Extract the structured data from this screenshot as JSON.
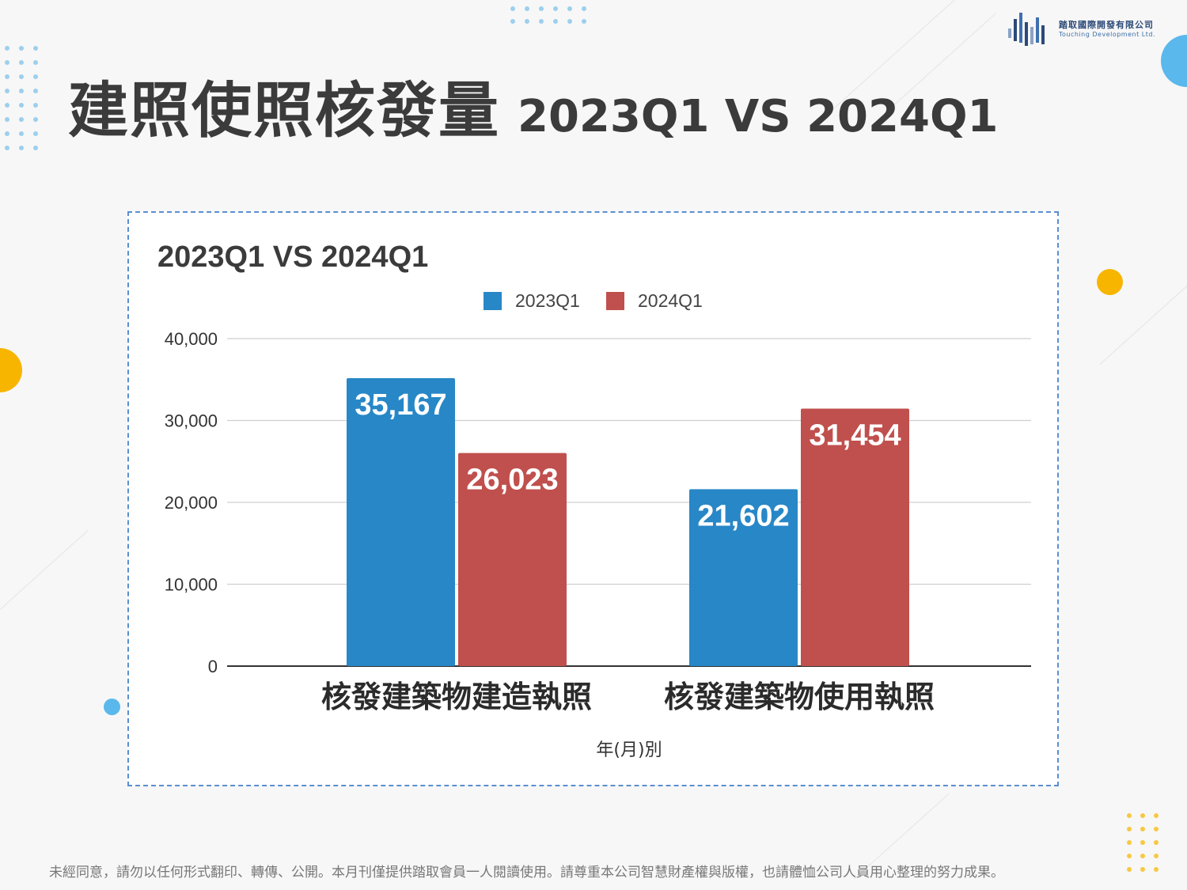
{
  "page": {
    "title_main": "建照使照核發量",
    "title_sub": "2023Q1 VS 2024Q1",
    "logo_name_cn": "踏取國際開發有限公司",
    "logo_name_en": "Touching Development Ltd.",
    "footer_text": "未經同意，請勿以任何形式翻印、轉傳、公開。本月刊僅提供踏取會員一人閱讀使用。請尊重本公司智慧財產權與版權，也請體恤公司人員用心整理的努力成果。"
  },
  "colors": {
    "accent_yellow": "#f7b500",
    "accent_blue": "#5ab8ec",
    "dots_blue": "#9ccfee"
  },
  "chart_data": {
    "type": "bar",
    "title": "2023Q1 VS 2024Q1",
    "xlabel": "年(月)別",
    "ylabel": "",
    "categories": [
      "核發建築物建造執照",
      "核發建築物使用執照"
    ],
    "series": [
      {
        "name": "2023Q1",
        "values": [
          35167,
          21602
        ],
        "color": "#2887c7",
        "labels": [
          "35,167",
          "21,602"
        ]
      },
      {
        "name": "2024Q1",
        "values": [
          26023,
          31454
        ],
        "color": "#c0504d",
        "labels": [
          "26,023",
          "31,454"
        ]
      }
    ],
    "ylim": [
      0,
      40000
    ],
    "yticks": [
      0,
      10000,
      20000,
      30000,
      40000
    ],
    "ytick_labels": [
      "0",
      "10,000",
      "20,000",
      "30,000",
      "40,000"
    ],
    "grid": true,
    "legend_position": "top-center"
  }
}
